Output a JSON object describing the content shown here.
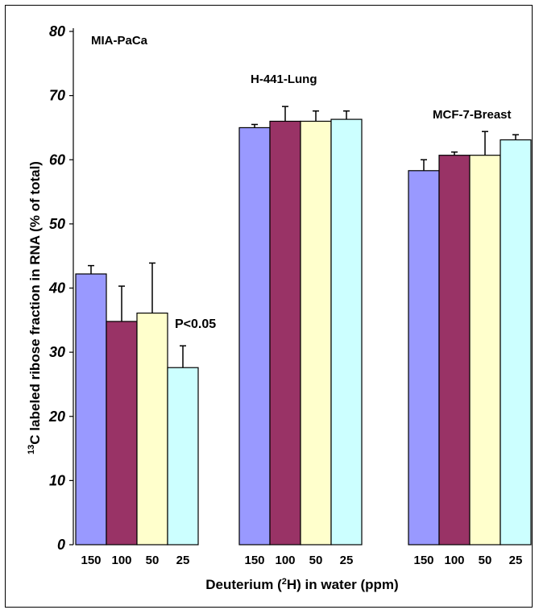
{
  "chart_data": {
    "type": "bar",
    "title": "",
    "ylabel_superscript": "13",
    "ylabel_main": "C labeled ribose fraction in RNA (% of total)",
    "xlabel_pre": "Deuterium (",
    "xlabel_sup": "2",
    "xlabel_post": "H) in water (ppm)",
    "ylim": [
      0,
      80
    ],
    "yticks": [
      0,
      10,
      20,
      30,
      40,
      50,
      60,
      70,
      80
    ],
    "categories": [
      "150",
      "100",
      "50",
      "25"
    ],
    "series_colors": [
      "#9999ff",
      "#993366",
      "#ffffcc",
      "#ccffff"
    ],
    "groups": [
      {
        "name": "MIA-PaCa",
        "values": [
          42.2,
          34.8,
          36.1,
          27.6
        ],
        "errors": [
          1.3,
          5.5,
          7.8,
          3.4
        ]
      },
      {
        "name": "H-441-Lung",
        "values": [
          65.0,
          66.0,
          66.0,
          66.3
        ],
        "errors": [
          0.5,
          2.3,
          1.6,
          1.3
        ]
      },
      {
        "name": "MCF-7-Breast",
        "values": [
          58.3,
          60.7,
          60.7,
          63.1
        ],
        "errors": [
          1.7,
          0.5,
          3.7,
          0.8
        ]
      }
    ],
    "annotations": [
      "P<0.05"
    ],
    "grid": false,
    "legend": "none"
  }
}
